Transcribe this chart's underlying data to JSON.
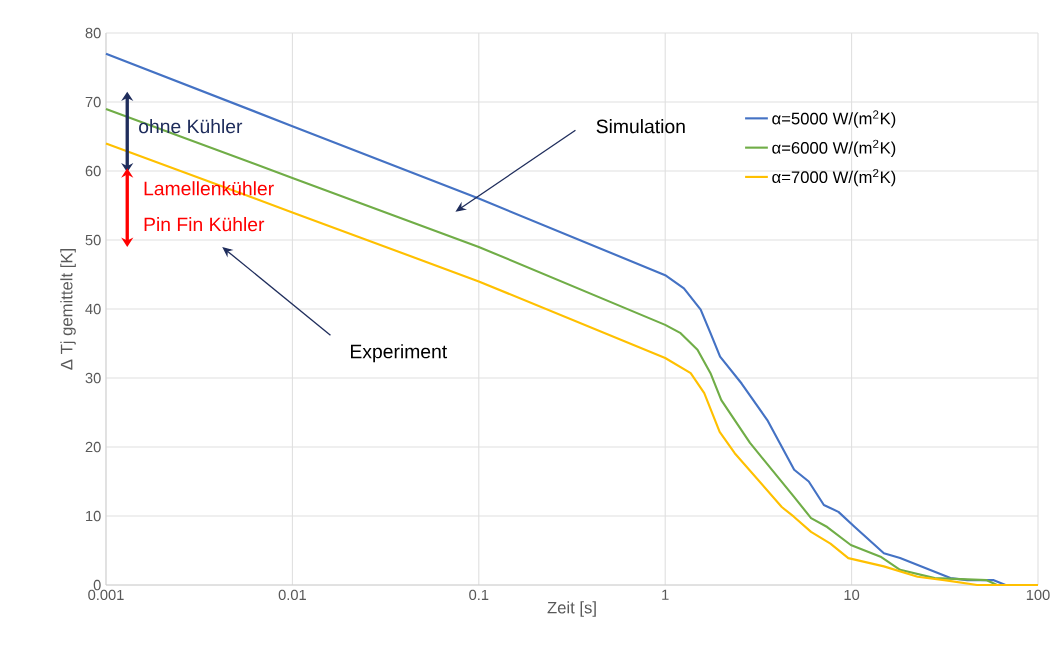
{
  "chart_data": {
    "type": "line",
    "xlabel": "Zeit [s]",
    "ylabel": "Δ Tj gemittelt [K]",
    "log": "x",
    "grid": true,
    "legend": "right",
    "xlim": [
      0.001,
      100
    ],
    "ylim": [
      0,
      80
    ],
    "xticks": [
      0.001,
      0.01,
      0.1,
      1,
      10,
      100
    ],
    "yticks": [
      0,
      10,
      20,
      30,
      40,
      50,
      60,
      70,
      80
    ],
    "annotations": [
      "Simulation",
      "Experiment",
      "ohne Kühler",
      "Lamellenkühler",
      "Pin Fin Kühler"
    ],
    "series": [
      {
        "name": "α=5000 W/(m$^{2}$K)",
        "color": "#4472c4",
        "x": [
          0.001,
          0.01,
          0.1,
          1,
          1.26,
          1.55,
          1.75,
          1.97,
          2.57,
          3.53,
          4.92,
          5.89,
          7.1,
          8.5,
          10.4,
          14.9,
          18.2,
          33.9,
          41.7,
          57.9,
          67,
          100
        ],
        "values": [
          77,
          66.5,
          56,
          44.9,
          43.0,
          39.9,
          36.5,
          33.1,
          29.2,
          23.9,
          16.7,
          15.0,
          11.6,
          10.6,
          8.4,
          4.6,
          3.9,
          1.0,
          0.7,
          0.7,
          0,
          0
        ]
      },
      {
        "name": "α=6000 W/(m$^{2}$K)",
        "color": "#70ad47",
        "x": [
          0.001,
          0.01,
          0.1,
          1,
          1.21,
          1.49,
          1.75,
          2.0,
          2.85,
          4.9,
          6.06,
          7.4,
          9.9,
          14.3,
          18.2,
          27.9,
          53.1,
          60.3,
          100
        ],
        "values": [
          69,
          59,
          49,
          37.7,
          36.5,
          34.1,
          30.7,
          26.8,
          20.6,
          12.8,
          9.7,
          8.4,
          5.8,
          4.1,
          2.2,
          1.0,
          0.7,
          0,
          0
        ]
      },
      {
        "name": "α=7000 W/(m$^{2}$K)",
        "color": "#ffc000",
        "x": [
          0.001,
          0.01,
          0.1,
          1,
          1.37,
          1.62,
          1.96,
          2.36,
          4.22,
          4.9,
          6.06,
          7.7,
          9.6,
          14.9,
          22.6,
          31.4,
          47.1,
          100
        ],
        "values": [
          64,
          54,
          44,
          32.9,
          30.7,
          27.8,
          22.2,
          19.1,
          11.3,
          9.9,
          7.7,
          6.0,
          3.9,
          2.7,
          1.2,
          0.7,
          0,
          0
        ]
      }
    ]
  }
}
